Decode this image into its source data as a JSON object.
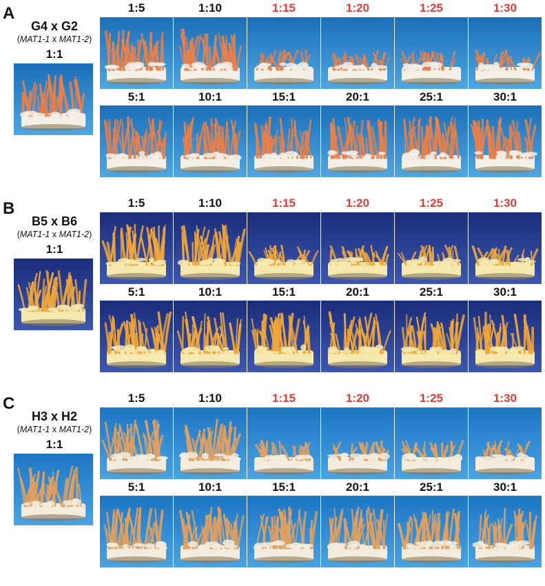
{
  "colors": {
    "label_black": "#111111",
    "label_red": "#e53935",
    "backdrop_blue": "#1f7ec9",
    "panel_b_backdrop": "#2b3f9a"
  },
  "panels": [
    {
      "letter": "A",
      "cross": "G4 x G2",
      "mating": {
        "open": "(",
        "a": "MAT1-1",
        "x": " x ",
        "b": "MAT1-2",
        "close": ")"
      },
      "control_ratio": "1:1",
      "top_ratios": [
        {
          "label": "1:5",
          "color": "black"
        },
        {
          "label": "1:10",
          "color": "black"
        },
        {
          "label": "1:15",
          "color": "red"
        },
        {
          "label": "1:20",
          "color": "red"
        },
        {
          "label": "1:25",
          "color": "red"
        },
        {
          "label": "1:30",
          "color": "red"
        }
      ],
      "bottom_ratios": [
        {
          "label": "5:1",
          "color": "black"
        },
        {
          "label": "10:1",
          "color": "black"
        },
        {
          "label": "15:1",
          "color": "black"
        },
        {
          "label": "20:1",
          "color": "black"
        },
        {
          "label": "25:1",
          "color": "black"
        },
        {
          "label": "30:1",
          "color": "black"
        }
      ],
      "photo_style": {
        "bg_top": "#1a6fb8",
        "bg_bottom": "#4fa6e0",
        "stroma": "#e8804a",
        "base": "#f2efe6"
      }
    },
    {
      "letter": "B",
      "cross": "B5 x B6",
      "mating": {
        "open": "(",
        "a": "MAT1-1",
        "x": " x ",
        "b": "MAT1-2",
        "close": ")"
      },
      "control_ratio": "1:1",
      "top_ratios": [
        {
          "label": "1:5",
          "color": "black"
        },
        {
          "label": "1:10",
          "color": "black"
        },
        {
          "label": "1:15",
          "color": "red"
        },
        {
          "label": "1:20",
          "color": "red"
        },
        {
          "label": "1:25",
          "color": "red"
        },
        {
          "label": "1:30",
          "color": "red"
        }
      ],
      "bottom_ratios": [
        {
          "label": "5:1",
          "color": "black"
        },
        {
          "label": "10:1",
          "color": "black"
        },
        {
          "label": "15:1",
          "color": "black"
        },
        {
          "label": "20:1",
          "color": "black"
        },
        {
          "label": "25:1",
          "color": "black"
        },
        {
          "label": "30:1",
          "color": "black"
        }
      ],
      "photo_style": {
        "bg_top": "#1b2d7a",
        "bg_bottom": "#3c57b0",
        "stroma": "#f0a63a",
        "base": "#f5e9b0"
      }
    },
    {
      "letter": "C",
      "cross": "H3 x H2",
      "mating": {
        "open": "(",
        "a": "MAT1-1",
        "x": " x ",
        "b": "MAT1-2",
        "close": ")"
      },
      "control_ratio": "1:1",
      "top_ratios": [
        {
          "label": "1:5",
          "color": "black"
        },
        {
          "label": "1:10",
          "color": "black"
        },
        {
          "label": "1:15",
          "color": "red"
        },
        {
          "label": "1:20",
          "color": "red"
        },
        {
          "label": "1:25",
          "color": "red"
        },
        {
          "label": "1:30",
          "color": "red"
        }
      ],
      "bottom_ratios": [
        {
          "label": "5:1",
          "color": "black"
        },
        {
          "label": "10:1",
          "color": "black"
        },
        {
          "label": "15:1",
          "color": "black"
        },
        {
          "label": "20:1",
          "color": "black"
        },
        {
          "label": "25:1",
          "color": "black"
        },
        {
          "label": "30:1",
          "color": "black"
        }
      ],
      "photo_style": {
        "bg_top": "#1d76c4",
        "bg_bottom": "#4aa3e2",
        "stroma": "#e0a060",
        "base": "#f3ecdc"
      }
    }
  ]
}
